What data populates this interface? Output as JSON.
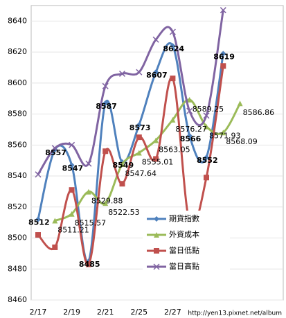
{
  "chart_data": {
    "type": "line",
    "categories": [
      "2/17",
      null,
      "2/19",
      null,
      "2/21",
      null,
      "2/25",
      null,
      "2/27",
      null,
      null,
      null,
      null
    ],
    "series": [
      {
        "name": "期貨指數",
        "color": "#4f81bd",
        "marker": "diamond",
        "values": [
          8512,
          8557,
          8547,
          8485,
          8587,
          8549,
          8573,
          8607,
          8624,
          8566,
          8552,
          8619,
          null
        ]
      },
      {
        "name": "外資成本",
        "color": "#9bbb59",
        "marker": "triangle",
        "values": [
          null,
          8511.21,
          8515.57,
          8529.88,
          8522.53,
          8547.64,
          8555.01,
          8563.05,
          8576.27,
          8589.25,
          8571.93,
          8568.09,
          8586.86
        ]
      },
      {
        "name": "當日低點",
        "color": "#c0504d",
        "marker": "square",
        "values": [
          8502,
          8494,
          8531,
          8483,
          8556,
          8535,
          8565,
          8551,
          8603,
          8510,
          8539,
          8611,
          null
        ]
      },
      {
        "name": "當日高點",
        "color": "#8064a2",
        "marker": "x",
        "values": [
          8541,
          8558,
          8560,
          8548,
          8598,
          8606,
          8607,
          8628,
          8633,
          8582,
          8579,
          8647,
          null
        ]
      }
    ],
    "labeled_series": [
      0,
      1
    ],
    "ylim": [
      8460,
      8650
    ],
    "yticks": [
      8460,
      8480,
      8500,
      8520,
      8540,
      8560,
      8580,
      8600,
      8620,
      8640
    ],
    "grid": true,
    "legend": "lower-center",
    "smooth": true,
    "watermark": "http://yen13.pixnet.net/album"
  }
}
